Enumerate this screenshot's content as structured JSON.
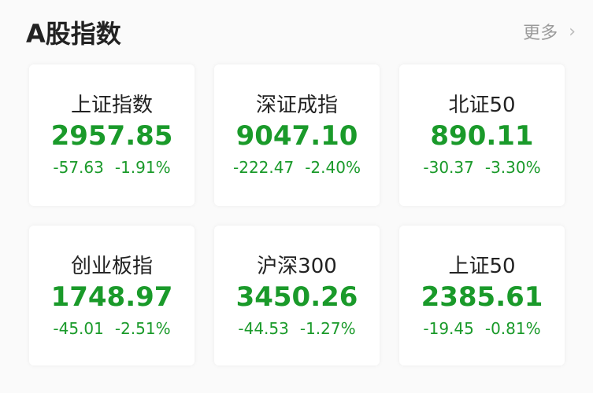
{
  "header": {
    "title": "A股指数",
    "more_label": "更多",
    "more_icon": "chevron-right-icon"
  },
  "colors": {
    "down": "#1a9a2a"
  },
  "indices": [
    {
      "name": "上证指数",
      "value": "2957.85",
      "change": "-57.63",
      "percent": "-1.91%"
    },
    {
      "name": "深证成指",
      "value": "9047.10",
      "change": "-222.47",
      "percent": "-2.40%"
    },
    {
      "name": "北证50",
      "value": "890.11",
      "change": "-30.37",
      "percent": "-3.30%"
    },
    {
      "name": "创业板指",
      "value": "1748.97",
      "change": "-45.01",
      "percent": "-2.51%"
    },
    {
      "name": "沪深300",
      "value": "3450.26",
      "change": "-44.53",
      "percent": "-1.27%"
    },
    {
      "name": "上证50",
      "value": "2385.61",
      "change": "-19.45",
      "percent": "-0.81%"
    }
  ]
}
